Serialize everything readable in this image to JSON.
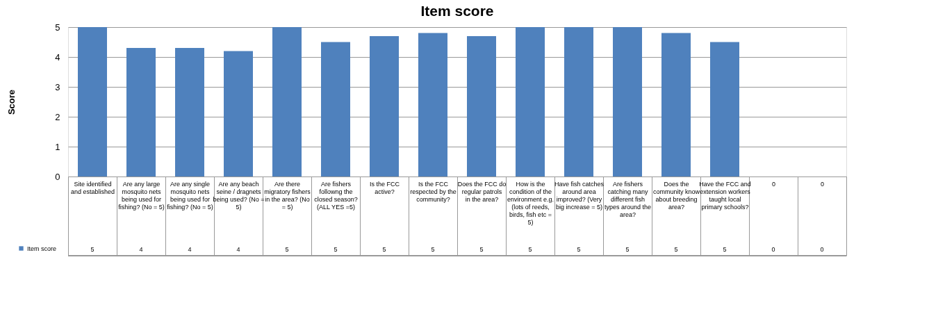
{
  "chart_data": {
    "type": "bar",
    "title": "Item score",
    "ylabel": "Score",
    "categories": [
      "Site identified and established",
      "Are any large mosquito nets being used for fishing? (No = 5)",
      "Are any single mosquito nets being used for fishing? (No = 5)",
      "Are any beach seine / dragnets being used? (No = 5)",
      "Are there migratory fishers in the area? (No = 5)",
      "Are fishers followng the closed season? (ALL YES =5)",
      "Is the FCC active?",
      "Is the FCC respected by the community?",
      "Does the FCC do regular patrols in the area?",
      "How is the condition of the environment e.g. (lots of reeds, birds, fish etc = 5)",
      "Have fish catches around area improved? (Very big increase = 5)",
      "Are fishers catching many different fish types around the area?",
      "Does the community know about breeding area?",
      "Have the FCC and extension workers taught local primary schools?",
      "0",
      "0"
    ],
    "series": [
      {
        "name": "Item score",
        "color": "#4f81bd",
        "values": [
          5,
          4.3,
          4.3,
          4.2,
          5,
          4.5,
          4.7,
          4.8,
          4.7,
          5,
          5,
          5,
          4.8,
          4.5,
          0,
          0
        ],
        "value_labels": [
          "5",
          "4",
          "4",
          "4",
          "5",
          "5",
          "5",
          "5",
          "5",
          "5",
          "5",
          "5",
          "5",
          "5",
          "0",
          "0"
        ]
      }
    ],
    "ylim": [
      0,
      5
    ],
    "yticks": [
      0,
      1,
      2,
      3,
      4,
      5
    ],
    "grid": "y",
    "legend": "bottom left"
  }
}
